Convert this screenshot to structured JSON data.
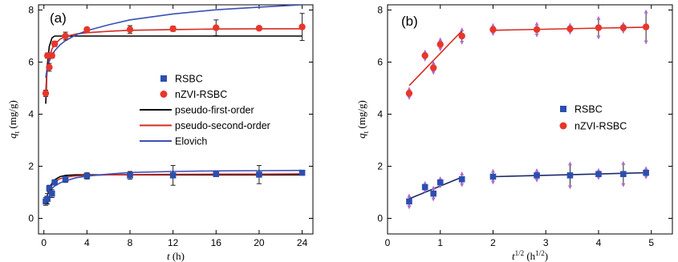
{
  "chart_data": [
    {
      "panel": "(a)",
      "type": "scatter",
      "xlabel": {
        "var": "t",
        "unit": "(h)"
      },
      "ylabel": {
        "var": "q",
        "sub": "t",
        "unit": "(mg/g)"
      },
      "xlim": [
        -0.5,
        25
      ],
      "ylim": [
        -0.6,
        8.2
      ],
      "xticks": [
        0,
        4,
        8,
        12,
        16,
        20,
        24
      ],
      "yticks": [
        0,
        2,
        4,
        6,
        8
      ],
      "legend": [
        {
          "label": "RSBC",
          "kind": "marker",
          "color": "#2c4fb0",
          "shape": "square"
        },
        {
          "label": "nZVI-RSBC",
          "kind": "marker",
          "color": "#e8362a",
          "shape": "circle"
        },
        {
          "label": "pseudo-first-order",
          "kind": "line",
          "color": "#000000"
        },
        {
          "label": "pseudo-second-order",
          "kind": "line",
          "color": "#d62a22"
        },
        {
          "label": "Elovich",
          "kind": "line",
          "color": "#3b4fb8"
        }
      ],
      "series": [
        {
          "name": "RSBC",
          "marker": "square",
          "color": "#2c4fb0",
          "x": [
            0.17,
            0.33,
            0.5,
            0.75,
            1,
            2,
            4,
            8,
            12,
            16,
            20,
            24
          ],
          "y": [
            0.65,
            0.75,
            1.15,
            0.95,
            1.38,
            1.5,
            1.63,
            1.65,
            1.65,
            1.7,
            1.68,
            1.75
          ],
          "err": [
            0.15,
            0.2,
            0.12,
            0.15,
            0.1,
            0.12,
            0.12,
            0.15,
            0.38,
            0.1,
            0.35,
            0.08
          ]
        },
        {
          "name": "nZVI-RSBC",
          "marker": "circle",
          "color": "#e8362a",
          "x": [
            0.17,
            0.33,
            0.5,
            0.75,
            1,
            2,
            4,
            8,
            12,
            16,
            20,
            24
          ],
          "y": [
            4.8,
            6.25,
            5.8,
            6.25,
            6.7,
            7.0,
            7.25,
            7.25,
            7.28,
            7.32,
            7.3,
            7.35
          ],
          "err": [
            0.12,
            0.1,
            0.15,
            0.1,
            0.1,
            0.15,
            0.08,
            0.15,
            0.1,
            0.3,
            0.08,
            0.52
          ]
        }
      ],
      "curves": [
        {
          "model": "pseudo-first-order",
          "color": "#000000",
          "x": [
            0.17,
            0.3,
            0.5,
            0.75,
            1,
            1.5,
            2,
            3,
            4,
            6,
            8,
            12,
            16,
            20,
            24
          ],
          "y": [
            4.4,
            5.8,
            6.6,
            6.93,
            7.0,
            7.0,
            7.0,
            7.0,
            7.0,
            7.0,
            7.0,
            7.0,
            7.0,
            7.0,
            7.0
          ]
        },
        {
          "model": "pseudo-second-order",
          "color": "#d62a22",
          "x": [
            0.17,
            0.3,
            0.5,
            0.75,
            1,
            1.5,
            2,
            3,
            4,
            6,
            8,
            12,
            16,
            20,
            24
          ],
          "y": [
            4.9,
            5.7,
            6.2,
            6.5,
            6.68,
            6.88,
            6.98,
            7.08,
            7.13,
            7.18,
            7.22,
            7.25,
            7.27,
            7.28,
            7.28
          ]
        },
        {
          "model": "Elovich",
          "color": "#3b4fb8",
          "x": [
            0.17,
            0.3,
            0.5,
            0.75,
            1,
            1.5,
            2,
            3,
            4,
            6,
            8,
            12,
            16,
            20,
            24
          ],
          "y": [
            5.4,
            5.75,
            6.03,
            6.26,
            6.43,
            6.66,
            6.82,
            7.05,
            7.21,
            7.43,
            7.62,
            7.85,
            8.01,
            8.11,
            8.2
          ]
        },
        {
          "model": "pseudo-first-order",
          "color": "#000000",
          "x": [
            0.17,
            0.3,
            0.5,
            0.75,
            1,
            1.5,
            2,
            3,
            4,
            6,
            8,
            12,
            16,
            20,
            24
          ],
          "y": [
            0.55,
            0.85,
            1.15,
            1.35,
            1.48,
            1.6,
            1.65,
            1.67,
            1.67,
            1.67,
            1.67,
            1.67,
            1.67,
            1.67,
            1.67
          ]
        },
        {
          "model": "pseudo-second-order",
          "color": "#d62a22",
          "x": [
            0.17,
            0.3,
            0.5,
            0.75,
            1,
            1.5,
            2,
            3,
            4,
            6,
            8,
            12,
            16,
            20,
            24
          ],
          "y": [
            0.6,
            0.85,
            1.1,
            1.28,
            1.4,
            1.52,
            1.58,
            1.63,
            1.65,
            1.67,
            1.68,
            1.69,
            1.7,
            1.7,
            1.71
          ]
        },
        {
          "model": "Elovich",
          "color": "#3b4fb8",
          "x": [
            0.17,
            0.3,
            0.5,
            0.75,
            1,
            1.5,
            2,
            3,
            4,
            6,
            8,
            12,
            16,
            20,
            24
          ],
          "y": [
            0.72,
            0.88,
            1.03,
            1.15,
            1.24,
            1.36,
            1.44,
            1.56,
            1.62,
            1.7,
            1.76,
            1.8,
            1.82,
            1.83,
            1.84
          ]
        }
      ]
    },
    {
      "panel": "(b)",
      "type": "scatter",
      "xlabel": {
        "var": "t",
        "sup": "1/2",
        "unit": "(h",
        "unitsup": "1/2",
        "unitclose": ")"
      },
      "ylabel": {
        "var": "q",
        "sub": "t",
        "unit": "(mg/g)"
      },
      "xlim": [
        0,
        5.4
      ],
      "ylim": [
        -0.6,
        8.2
      ],
      "xticks": [
        0,
        1,
        2,
        3,
        4,
        5
      ],
      "yticks": [
        0,
        2,
        4,
        6,
        8
      ],
      "legend": [
        {
          "label": "RSBC",
          "kind": "marker",
          "color": "#2c4fb0",
          "shape": "square"
        },
        {
          "label": "nZVI-RSBC",
          "kind": "marker",
          "color": "#e8362a",
          "shape": "circle"
        }
      ],
      "series": [
        {
          "name": "RSBC",
          "marker": "square",
          "color": "#2c4fb0",
          "x": [
            0.41,
            0.71,
            0.87,
            1.0,
            1.41,
            2.0,
            2.83,
            3.46,
            4.0,
            4.47,
            4.9
          ],
          "y": [
            0.65,
            1.2,
            0.95,
            1.38,
            1.5,
            1.6,
            1.65,
            1.65,
            1.7,
            1.7,
            1.75
          ],
          "err": [
            0.15,
            0.08,
            0.15,
            0.08,
            0.15,
            0.15,
            0.12,
            0.38,
            0.08,
            0.35,
            0.1
          ]
        },
        {
          "name": "nZVI-RSBC",
          "marker": "circle",
          "color": "#e8362a",
          "x": [
            0.41,
            0.71,
            0.87,
            1.0,
            1.41,
            2.0,
            2.83,
            3.46,
            4.0,
            4.47,
            4.9
          ],
          "y": [
            4.8,
            6.25,
            5.78,
            6.68,
            7.0,
            7.25,
            7.25,
            7.28,
            7.32,
            7.32,
            7.35
          ],
          "err": [
            0.1,
            0.08,
            0.12,
            0.12,
            0.18,
            0.1,
            0.15,
            0.08,
            0.3,
            0.08,
            0.52
          ]
        }
      ],
      "curves": [
        {
          "stage": "nZVI-RSBC stage 1",
          "color": "#d62a22",
          "x": [
            0.41,
            1.41
          ],
          "y": [
            5.1,
            7.2
          ]
        },
        {
          "stage": "nZVI-RSBC stage 2",
          "color": "#d62a22",
          "x": [
            2.0,
            4.9
          ],
          "y": [
            7.22,
            7.34
          ]
        },
        {
          "stage": "RSBC stage 1",
          "color": "#1c2a6a",
          "x": [
            0.41,
            1.41
          ],
          "y": [
            0.75,
            1.58
          ]
        },
        {
          "stage": "RSBC stage 2",
          "color": "#1c2a6a",
          "x": [
            2.0,
            4.9
          ],
          "y": [
            1.6,
            1.75
          ]
        }
      ],
      "arrow_color": "#b06ad0"
    }
  ]
}
